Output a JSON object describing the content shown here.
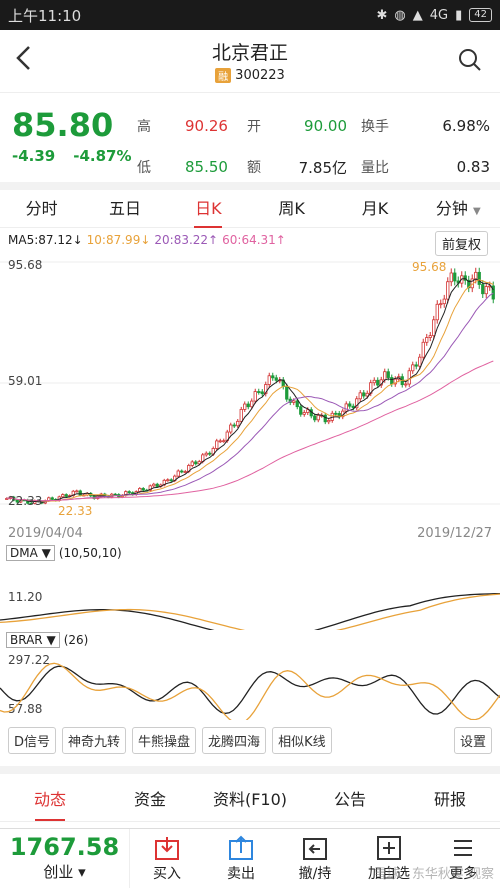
{
  "status_bar": {
    "time": "上午11:10",
    "network": "4G",
    "battery": "42"
  },
  "header": {
    "name": "北京君正",
    "badge": "融",
    "code": "300223"
  },
  "quote": {
    "price": "85.80",
    "change": "-4.39",
    "change_pct": "-4.87%",
    "high_label": "高",
    "high": "90.26",
    "open_label": "开",
    "open": "90.00",
    "turnover_label": "换手",
    "turnover": "6.98%",
    "low_label": "低",
    "low": "85.50",
    "amount_label": "额",
    "amount": "7.85亿",
    "ratio_label": "量比",
    "ratio": "0.83"
  },
  "tabs": [
    "分时",
    "五日",
    "日K",
    "周K",
    "月K",
    "分钟"
  ],
  "active_tab": "日K",
  "ma_legend": {
    "ma5": "MA5:87.12↓",
    "ma10": "10:87.99↓",
    "ma20": "20:83.22↑",
    "ma60": "60:64.31↑"
  },
  "adjust_button": "前复权",
  "kline": {
    "y_top": "95.68",
    "y_mid": "59.01",
    "y_bottom": "22.33",
    "max_marker": "95.68",
    "min_marker": "22.33",
    "date_start": "2019/04/04",
    "date_end": "2019/12/27"
  },
  "dma": {
    "name": "DMA",
    "params": "(10,50,10)",
    "y_label": "11.20"
  },
  "brar": {
    "name": "BRAR",
    "params": "(26)",
    "y_top": "297.22",
    "y_bottom": "57.88"
  },
  "tools": [
    "D信号",
    "神奇九转",
    "牛熊操盘",
    "龙腾四海",
    "相似K线"
  ],
  "settings": "设置",
  "bottom_tabs": [
    "动态",
    "资金",
    "资料(F10)",
    "公告",
    "研报"
  ],
  "index": {
    "value": "1767.58",
    "name": "创业"
  },
  "actions": [
    "买入",
    "卖出",
    "撤/持",
    "加自选",
    "更多"
  ],
  "watermark": "雪球 · 东华秋实 观察",
  "colors": {
    "up": "#d33333",
    "down": "#1d9b3a",
    "ma5": "#222222",
    "ma10": "#e8a23a",
    "ma20": "#9b59b6",
    "ma60": "#e062a0"
  },
  "chart_data": {
    "type": "candlestick",
    "x_range": [
      "2019/04/04",
      "2019/12/27"
    ],
    "y_range": [
      22.33,
      95.68
    ],
    "close_approx": [
      24,
      23.5,
      23,
      22.8,
      23.5,
      24,
      25,
      26,
      25,
      24.5,
      25,
      24.8,
      25.5,
      26,
      27,
      28,
      29,
      31,
      33,
      35,
      37,
      40,
      43,
      47,
      52,
      55,
      58,
      62,
      56,
      52,
      50,
      49,
      48,
      49,
      51,
      53,
      56,
      59,
      61,
      60,
      59,
      64,
      70,
      78,
      86,
      92,
      89,
      91,
      88,
      85.8
    ]
  }
}
